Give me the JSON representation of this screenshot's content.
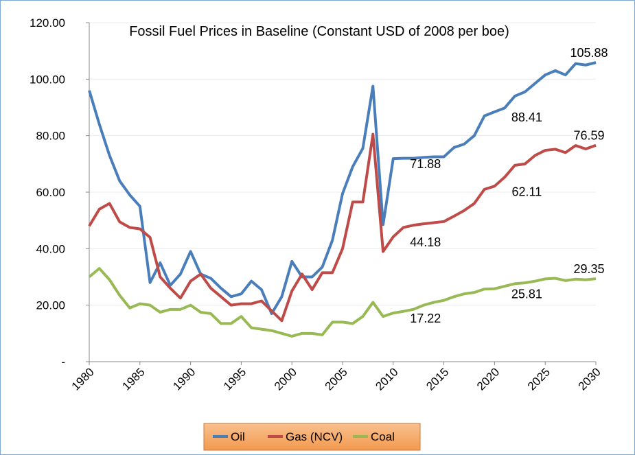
{
  "chart_data": {
    "type": "line",
    "title": "Fossil Fuel Prices in Baseline (Constant USD of 2008 per boe)",
    "x": [
      1980,
      1981,
      1982,
      1983,
      1984,
      1985,
      1986,
      1987,
      1988,
      1989,
      1990,
      1991,
      1992,
      1993,
      1994,
      1995,
      1996,
      1997,
      1998,
      1999,
      2000,
      2001,
      2002,
      2003,
      2004,
      2005,
      2006,
      2007,
      2008,
      2009,
      2010,
      2011,
      2012,
      2013,
      2014,
      2015,
      2016,
      2017,
      2018,
      2019,
      2020,
      2021,
      2022,
      2023,
      2024,
      2025,
      2026,
      2027,
      2028,
      2029,
      2030
    ],
    "series": [
      {
        "name": "Oil",
        "color": "#4a7ebb",
        "values": [
          96,
          84,
          73,
          64,
          59,
          55,
          28,
          35,
          27,
          31,
          39,
          31,
          29.5,
          26,
          23,
          24,
          28.5,
          25.5,
          17,
          23,
          35.5,
          30,
          30,
          33.5,
          43,
          59.5,
          69,
          75.5,
          97.5,
          48.5,
          71.88,
          72,
          72,
          72.3,
          72.5,
          72.5,
          75.8,
          77,
          80,
          87,
          88.41,
          89.8,
          94,
          95.5,
          98.5,
          101.5,
          103,
          101.5,
          105.5,
          105,
          105.88
        ],
        "value_labels": [
          null,
          null,
          null,
          null,
          null,
          null,
          null,
          null,
          null,
          null,
          null,
          null,
          null,
          null,
          null,
          null,
          null,
          null,
          null,
          null,
          null,
          null,
          null,
          null,
          null,
          null,
          null,
          null,
          null,
          null,
          "71.88",
          null,
          null,
          null,
          null,
          null,
          null,
          null,
          null,
          null,
          "88.41",
          null,
          null,
          null,
          null,
          null,
          null,
          null,
          null,
          null,
          "105.88"
        ]
      },
      {
        "name": "Gas (NCV)",
        "color": "#be4b48",
        "values": [
          48,
          54,
          56,
          49.5,
          47.5,
          47,
          44,
          30,
          26,
          22.5,
          28.5,
          31,
          26,
          23,
          20,
          20.5,
          20.5,
          21.5,
          18,
          14.5,
          25,
          31,
          25.5,
          31.5,
          31.5,
          40,
          56.5,
          56.5,
          80.5,
          39,
          44.18,
          47.5,
          48.3,
          48.8,
          49.2,
          49.6,
          51.5,
          53.5,
          56,
          61,
          62.11,
          65.3,
          69.5,
          70,
          73,
          74.8,
          75.2,
          74,
          76.5,
          75.3,
          76.59
        ],
        "value_labels": [
          null,
          null,
          null,
          null,
          null,
          null,
          null,
          null,
          null,
          null,
          null,
          null,
          null,
          null,
          null,
          null,
          null,
          null,
          null,
          null,
          null,
          null,
          null,
          null,
          null,
          null,
          null,
          null,
          null,
          null,
          "44.18",
          null,
          null,
          null,
          null,
          null,
          null,
          null,
          null,
          null,
          "62.11",
          null,
          null,
          null,
          null,
          null,
          null,
          null,
          null,
          null,
          "76.59"
        ]
      },
      {
        "name": "Coal",
        "color": "#98b954",
        "values": [
          30,
          33,
          29,
          23.5,
          19,
          20.5,
          20,
          17.5,
          18.5,
          18.5,
          20,
          17.5,
          17,
          13.5,
          13.5,
          16,
          12,
          11.5,
          11,
          10,
          9,
          10,
          10,
          9.5,
          14,
          14,
          13.5,
          16,
          21,
          16,
          17.22,
          17.8,
          18.5,
          20,
          21,
          21.7,
          23,
          24,
          24.5,
          25.7,
          25.81,
          26.7,
          27.6,
          27.9,
          28.5,
          29.3,
          29.5,
          28.7,
          29.2,
          29,
          29.35
        ],
        "value_labels": [
          null,
          null,
          null,
          null,
          null,
          null,
          null,
          null,
          null,
          null,
          null,
          null,
          null,
          null,
          null,
          null,
          null,
          null,
          null,
          null,
          null,
          null,
          null,
          null,
          null,
          null,
          null,
          null,
          null,
          null,
          "17.22",
          null,
          null,
          null,
          null,
          null,
          null,
          null,
          null,
          null,
          "25.81",
          null,
          null,
          null,
          null,
          null,
          null,
          null,
          null,
          null,
          "29.35"
        ]
      }
    ],
    "xlim": [
      1980,
      2030
    ],
    "xticks": [
      1980,
      1985,
      1990,
      1995,
      2000,
      2005,
      2010,
      2015,
      2020,
      2025,
      2030
    ],
    "ylim": [
      0,
      120
    ],
    "yticks": [
      {
        "value": 0,
        "label": "-"
      },
      {
        "value": 20,
        "label": "20.00"
      },
      {
        "value": 40,
        "label": "40.00"
      },
      {
        "value": 60,
        "label": "60.00"
      },
      {
        "value": 80,
        "label": "80.00"
      },
      {
        "value": 100,
        "label": "100.00"
      },
      {
        "value": 120,
        "label": "120.00"
      }
    ],
    "grid": true,
    "legend": "bottom"
  }
}
